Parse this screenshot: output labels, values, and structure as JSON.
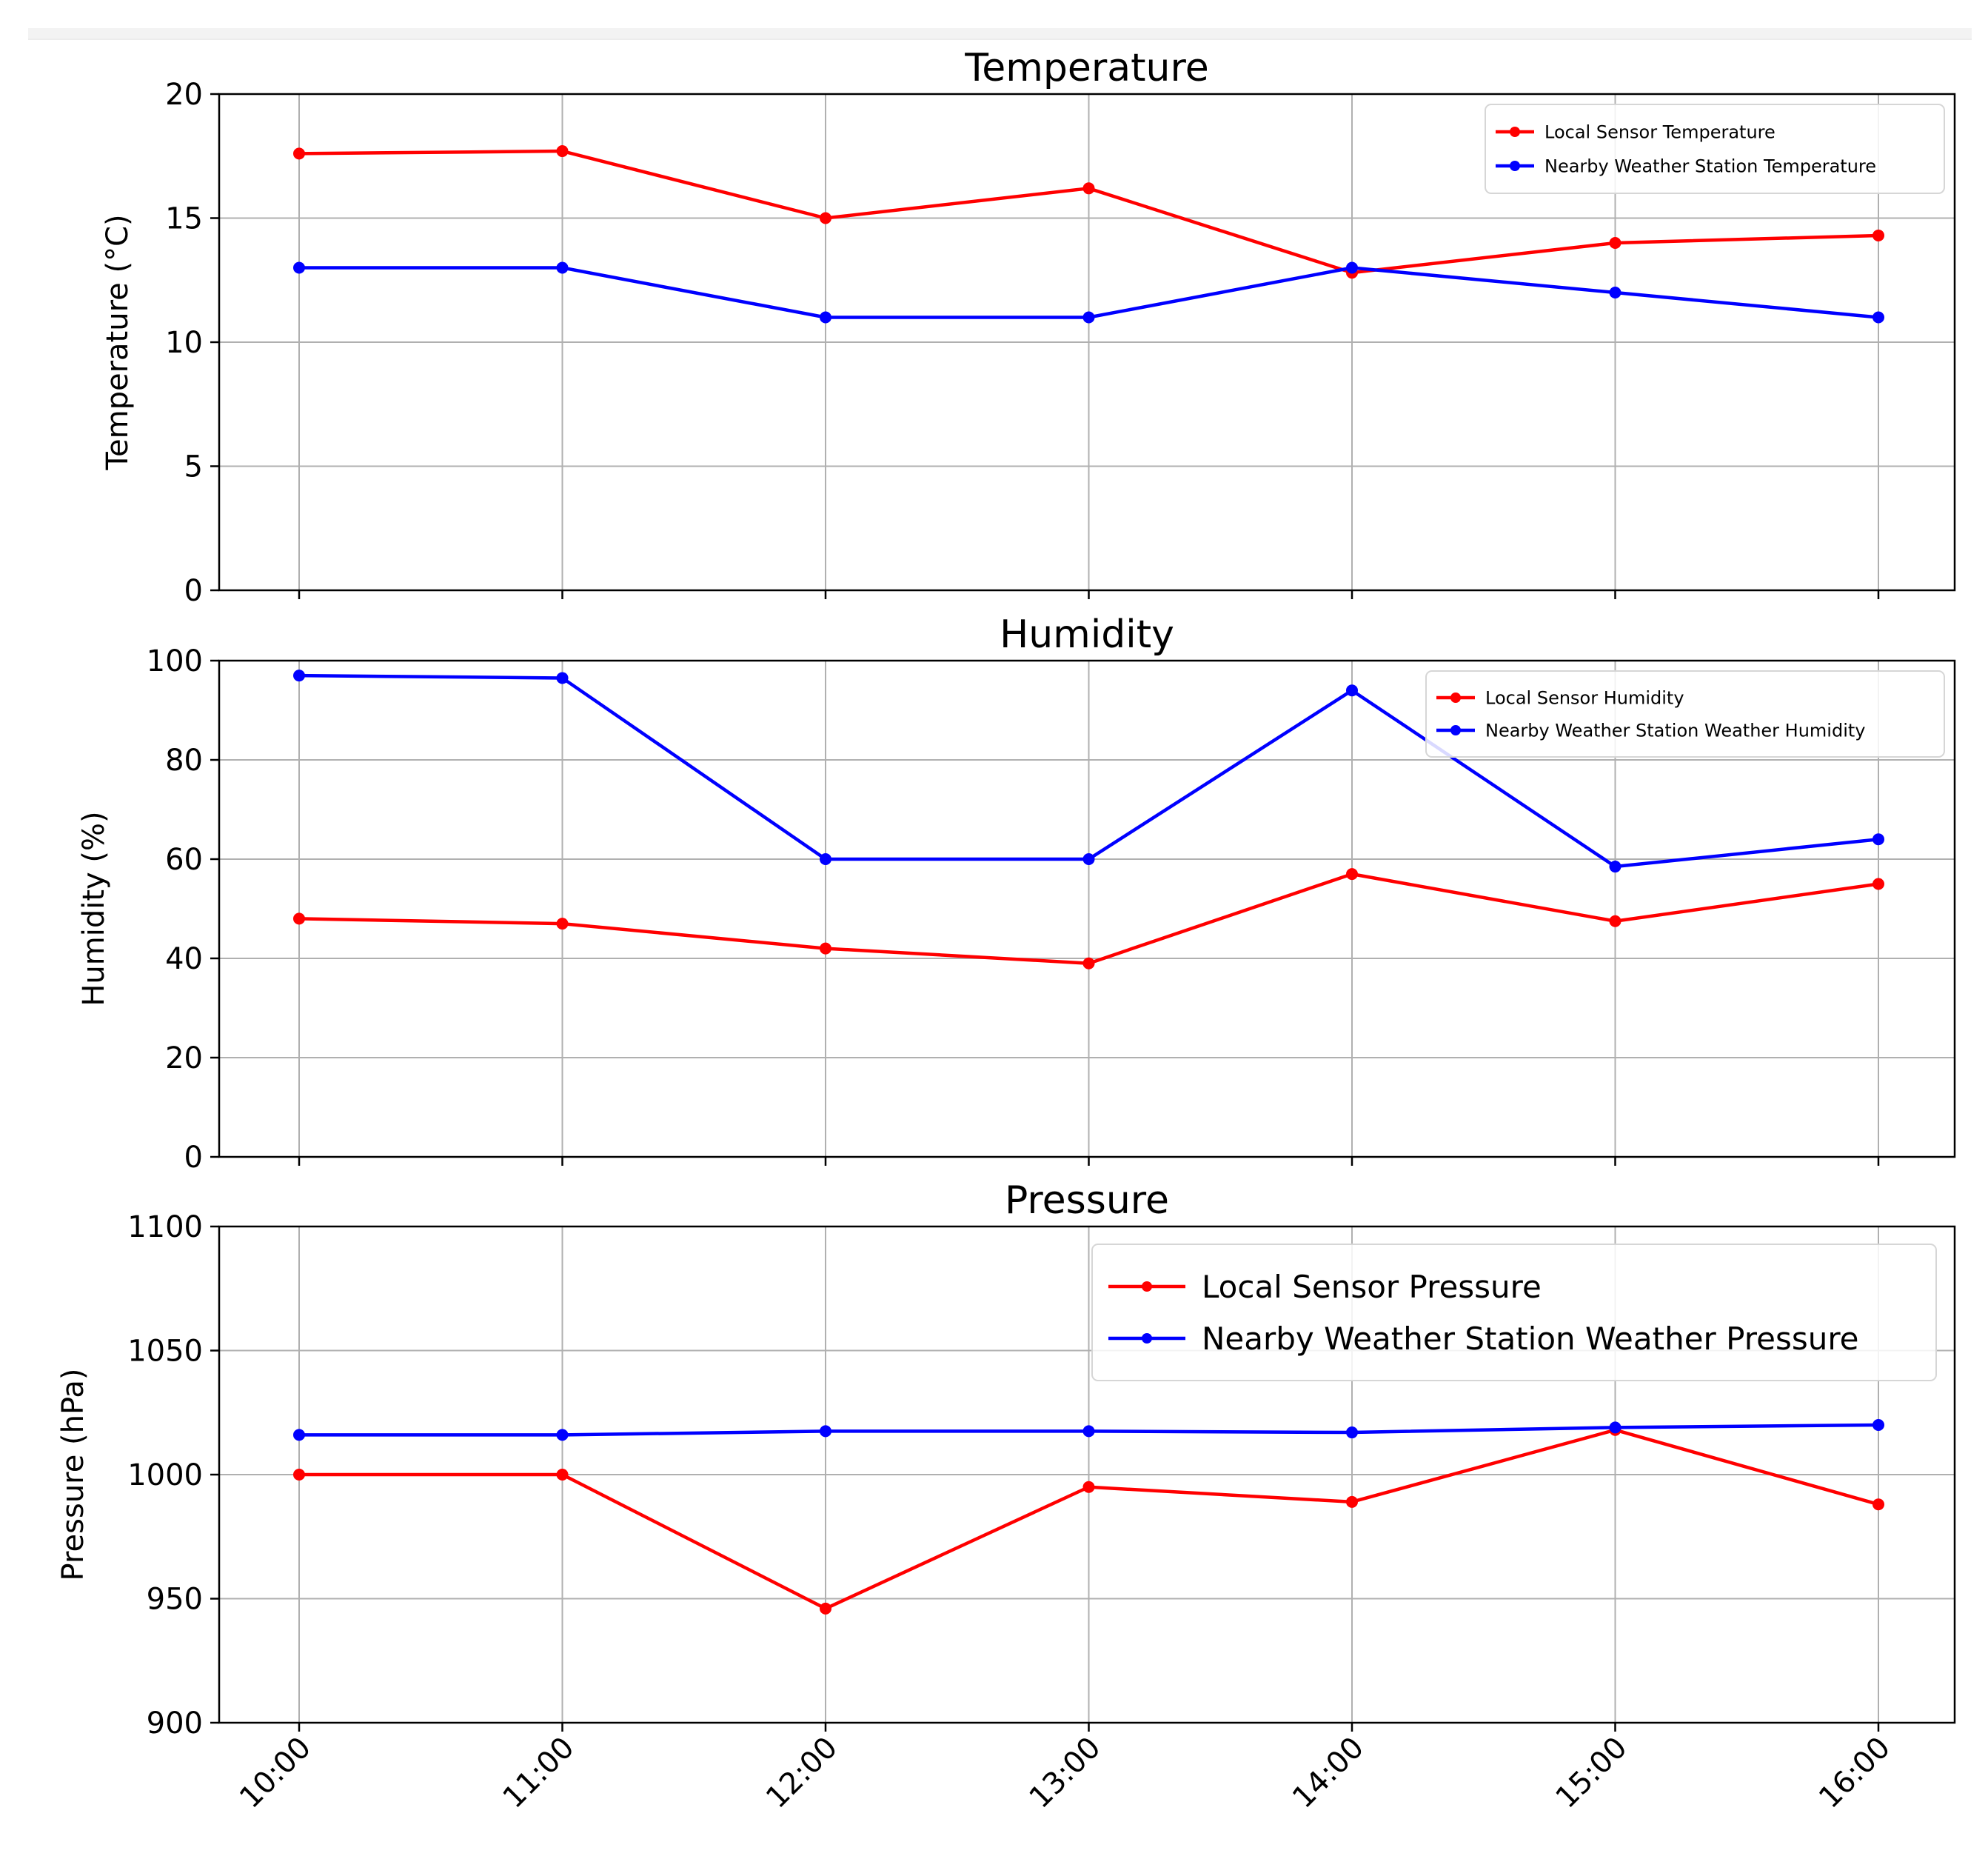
{
  "chart_data": [
    {
      "type": "line",
      "title": "Temperature",
      "xlabel": "",
      "ylabel": "Temperature (°C)",
      "ylim": [
        0,
        20
      ],
      "yticks": [
        0,
        5,
        10,
        15,
        20
      ],
      "ytick_labels": [
        "0",
        "5",
        "10",
        "15",
        "20"
      ],
      "legend": "top-right",
      "legend_size": "small",
      "grid": true,
      "categories": [
        "10:00",
        "11:00",
        "12:00",
        "13:00",
        "14:00",
        "15:00",
        "16:00"
      ],
      "series": [
        {
          "name": "Local Sensor Temperature",
          "color": "#ff0000",
          "values": [
            17.6,
            17.7,
            15.0,
            16.2,
            12.8,
            14.0,
            14.3
          ]
        },
        {
          "name": "Nearby Weather Station Temperature",
          "color": "#0000ff",
          "values": [
            13.0,
            13.0,
            11.0,
            11.0,
            13.0,
            12.0,
            11.0
          ]
        }
      ]
    },
    {
      "type": "line",
      "title": "Humidity",
      "xlabel": "",
      "ylabel": "Humidity (%)",
      "ylim": [
        0,
        100
      ],
      "yticks": [
        0,
        20,
        40,
        60,
        80,
        100
      ],
      "ytick_labels": [
        "0",
        "20",
        "40",
        "60",
        "80",
        "100"
      ],
      "legend": "top-right",
      "legend_size": "small",
      "grid": true,
      "categories": [
        "10:00",
        "11:00",
        "12:00",
        "13:00",
        "14:00",
        "15:00",
        "16:00"
      ],
      "series": [
        {
          "name": "Local Sensor Humidity",
          "color": "#ff0000",
          "values": [
            48,
            47,
            42,
            39,
            57,
            47.5,
            55
          ]
        },
        {
          "name": "Nearby Weather Station Weather Humidity",
          "color": "#0000ff",
          "values": [
            97,
            96.5,
            60,
            60,
            94,
            58.5,
            64
          ]
        }
      ]
    },
    {
      "type": "line",
      "title": "Pressure",
      "xlabel": "",
      "ylabel": "Pressure (hPa)",
      "ylim": [
        900,
        1100
      ],
      "yticks": [
        900,
        950,
        1000,
        1050,
        1100
      ],
      "ytick_labels": [
        "900",
        "950",
        "1000",
        "1050",
        "1100"
      ],
      "legend": "top-right",
      "legend_size": "normal",
      "grid": true,
      "show_xtick_labels": true,
      "xtick_rotation": 45,
      "categories": [
        "10:00",
        "11:00",
        "12:00",
        "13:00",
        "14:00",
        "15:00",
        "16:00"
      ],
      "series": [
        {
          "name": "Local Sensor Pressure",
          "color": "#ff0000",
          "values": [
            1000,
            1000,
            946,
            995,
            989,
            1018,
            988
          ]
        },
        {
          "name": "Nearby Weather Station Weather Pressure",
          "color": "#0000ff",
          "values": [
            1016,
            1016,
            1017.5,
            1017.5,
            1017,
            1019,
            1020
          ]
        }
      ]
    }
  ]
}
